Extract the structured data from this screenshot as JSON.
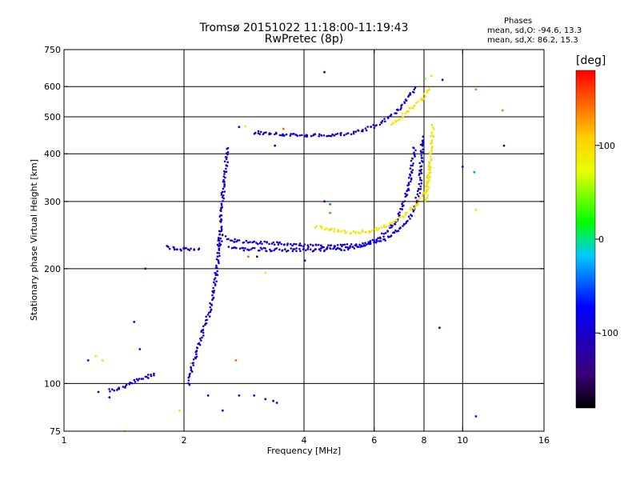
{
  "chart_data": {
    "type": "scatter",
    "title": "Tromsø 20151022 11:18:00-11:19:43",
    "subtitle": "RwPretec (8p)",
    "xlabel": "Frequency [MHz]",
    "ylabel": "Stationary phase Virtual Height [km]",
    "xscale": "log",
    "yscale": "log",
    "xlim": [
      1,
      16
    ],
    "ylim": [
      75,
      750
    ],
    "xticks": [
      1,
      2,
      4,
      6,
      8,
      10,
      16
    ],
    "yticks": [
      75,
      100,
      200,
      300,
      400,
      500,
      600,
      750
    ],
    "xgrid": [
      2,
      4,
      6,
      8,
      10
    ],
    "ygrid": [
      100,
      200,
      300,
      400,
      500,
      600
    ],
    "grid": true,
    "phases": {
      "heading": "Phases",
      "o_line": "mean, sd,O:  -94.6, 13.3",
      "x_line": "mean, sd,X:   86.2, 15.3"
    },
    "colorbar": {
      "unit": "[deg]",
      "range": [
        -180,
        180
      ],
      "ticks": [
        100,
        0,
        -100
      ],
      "tick_labels": [
        "100",
        "0",
        "-100"
      ]
    },
    "series": [
      {
        "mode": "blue",
        "phase": -95,
        "segments": [
          {
            "x": [
              2.05,
              2.12,
              2.2,
              2.3,
              2.38,
              2.42,
              2.45,
              2.48
            ],
            "y": [
              100,
              115,
              130,
              150,
              175,
              200,
              225,
              240
            ]
          },
          {
            "x": [
              2.45,
              2.47,
              2.5,
              2.52,
              2.55,
              2.58
            ],
            "y": [
              228,
              260,
              300,
              340,
              380,
              420
            ]
          },
          {
            "x": [
              1.8,
              1.9,
              2.0,
              2.1,
              2.2
            ],
            "y": [
              228,
              226,
              225,
              224,
              224
            ]
          },
          {
            "x": [
              2.5,
              2.6,
              2.8,
              3.0,
              3.4,
              3.9,
              4.4,
              5.0,
              5.7,
              6.4,
              7.0,
              7.5,
              7.8,
              7.95
            ],
            "y": [
              244,
              238,
              235,
              234,
              233,
              231,
              229,
              229,
              232,
              240,
              255,
              280,
              320,
              450
            ]
          },
          {
            "x": [
              2.6,
              2.8,
              3.0,
              3.4,
              3.9,
              4.4,
              5.0,
              5.6,
              6.2,
              6.8,
              7.3,
              7.6
            ],
            "y": [
              226,
              225,
              225,
              224,
              224,
              224,
              225,
              229,
              240,
              265,
              320,
              420
            ]
          },
          {
            "x": [
              3.0,
              3.3,
              3.7,
              4.0,
              4.5,
              5.0,
              5.5,
              6.0,
              6.5,
              7.0,
              7.3,
              7.6
            ],
            "y": [
              455,
              452,
              448,
              446,
              447,
              450,
              458,
              472,
              495,
              530,
              560,
              600
            ]
          },
          {
            "x": [
              1.3,
              1.4,
              1.5,
              1.6,
              1.7
            ],
            "y": [
              96,
              98,
              101,
              104,
              106
            ]
          }
        ]
      },
      {
        "mode": "yellow",
        "phase": 95,
        "segments": [
          {
            "x": [
              4.3,
              4.7,
              5.2,
              5.8,
              6.4,
              7.0,
              7.6,
              8.1,
              8.3
            ],
            "y": [
              258,
              252,
              248,
              250,
              258,
              272,
              292,
              320,
              370
            ]
          },
          {
            "x": [
              8.1,
              8.2,
              8.3,
              8.4,
              8.4
            ],
            "y": [
              300,
              340,
              390,
              440,
              480
            ]
          },
          {
            "x": [
              6.6,
              7.0,
              7.4,
              7.8,
              8.1,
              8.3
            ],
            "y": [
              478,
              500,
              525,
              550,
              575,
              600
            ]
          }
        ]
      }
    ],
    "scatter_points": [
      {
        "x": 1.5,
        "y": 145,
        "phase": -110
      },
      {
        "x": 1.6,
        "y": 200,
        "phase": -110
      },
      {
        "x": 1.42,
        "y": 75,
        "phase": 80
      },
      {
        "x": 1.25,
        "y": 115,
        "phase": 95
      },
      {
        "x": 1.2,
        "y": 118,
        "phase": 100
      },
      {
        "x": 1.15,
        "y": 115,
        "phase": -100
      },
      {
        "x": 1.22,
        "y": 95,
        "phase": -105
      },
      {
        "x": 1.3,
        "y": 92,
        "phase": -100
      },
      {
        "x": 1.55,
        "y": 123,
        "phase": -95
      },
      {
        "x": 1.95,
        "y": 85,
        "phase": 95
      },
      {
        "x": 2.08,
        "y": 113,
        "phase": 50
      },
      {
        "x": 2.3,
        "y": 93,
        "phase": -95
      },
      {
        "x": 2.5,
        "y": 85,
        "phase": -90
      },
      {
        "x": 2.7,
        "y": 115,
        "phase": 150
      },
      {
        "x": 2.75,
        "y": 93,
        "phase": -100
      },
      {
        "x": 3.0,
        "y": 93,
        "phase": -95
      },
      {
        "x": 3.2,
        "y": 91,
        "phase": -100
      },
      {
        "x": 3.35,
        "y": 90,
        "phase": -110
      },
      {
        "x": 3.42,
        "y": 89,
        "phase": -100
      },
      {
        "x": 3.2,
        "y": 195,
        "phase": 95
      },
      {
        "x": 2.75,
        "y": 470,
        "phase": -95
      },
      {
        "x": 2.85,
        "y": 472,
        "phase": 90
      },
      {
        "x": 3.38,
        "y": 420,
        "phase": -80
      },
      {
        "x": 3.55,
        "y": 465,
        "phase": 150
      },
      {
        "x": 4.02,
        "y": 210,
        "phase": -100
      },
      {
        "x": 4.5,
        "y": 655,
        "phase": -160
      },
      {
        "x": 4.5,
        "y": 300,
        "phase": -150
      },
      {
        "x": 4.65,
        "y": 280,
        "phase": 150
      },
      {
        "x": 4.65,
        "y": 295,
        "phase": -40
      },
      {
        "x": 3.05,
        "y": 215,
        "phase": -150
      },
      {
        "x": 2.9,
        "y": 215,
        "phase": 150
      },
      {
        "x": 8.05,
        "y": 630,
        "phase": 40
      },
      {
        "x": 8.35,
        "y": 640,
        "phase": 60
      },
      {
        "x": 8.9,
        "y": 625,
        "phase": -100
      },
      {
        "x": 8.75,
        "y": 140,
        "phase": -110
      },
      {
        "x": 10.0,
        "y": 370,
        "phase": -100
      },
      {
        "x": 10.7,
        "y": 358,
        "phase": -30
      },
      {
        "x": 10.8,
        "y": 285,
        "phase": 95
      },
      {
        "x": 10.8,
        "y": 590,
        "phase": 140
      },
      {
        "x": 10.8,
        "y": 82,
        "phase": -70
      },
      {
        "x": 12.6,
        "y": 520,
        "phase": 140
      },
      {
        "x": 12.7,
        "y": 420,
        "phase": -100
      }
    ]
  }
}
